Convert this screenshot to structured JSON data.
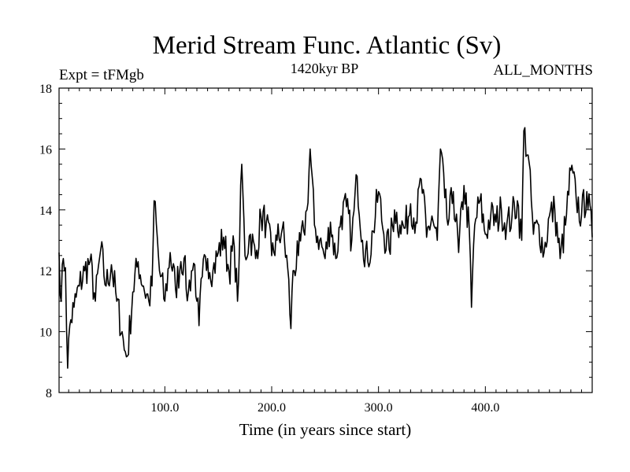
{
  "chart_data": {
    "type": "line",
    "title": "Merid Stream Func. Atlantic (Sv)",
    "subtitle": "1420kyr BP",
    "left_label": "Expt = tFMgb",
    "right_label": "ALL_MONTHS",
    "xlabel": "Time (in years since start)",
    "ylabel": "",
    "xlim": [
      1,
      500
    ],
    "ylim": [
      8,
      18
    ],
    "x_ticks": [
      100,
      200,
      300,
      400
    ],
    "x_tick_labels": [
      "100.0",
      "200.0",
      "300.0",
      "400.0"
    ],
    "y_ticks": [
      8,
      10,
      12,
      14,
      16,
      18
    ],
    "y_tick_labels": [
      "8",
      "10",
      "12",
      "14",
      "16",
      "18"
    ],
    "grid": false,
    "series": [
      {
        "name": "Merid Stream Func.",
        "color": "#000000",
        "key_points": [
          [
            1,
            12.6
          ],
          [
            3,
            11.0
          ],
          [
            5,
            12.4
          ],
          [
            7,
            12.1
          ],
          [
            9,
            8.8
          ],
          [
            11,
            10.2
          ],
          [
            15,
            10.8
          ],
          [
            20,
            11.5
          ],
          [
            25,
            12.0
          ],
          [
            30,
            12.3
          ],
          [
            35,
            11.0
          ],
          [
            40,
            12.7
          ],
          [
            45,
            11.5
          ],
          [
            50,
            12.2
          ],
          [
            55,
            11.0
          ],
          [
            60,
            10.0
          ],
          [
            62,
            9.4
          ],
          [
            65,
            9.2
          ],
          [
            70,
            11.3
          ],
          [
            75,
            12.3
          ],
          [
            80,
            11.5
          ],
          [
            85,
            11.0
          ],
          [
            88,
            11.5
          ],
          [
            90,
            14.3
          ],
          [
            95,
            12.0
          ],
          [
            100,
            11.0
          ],
          [
            105,
            12.6
          ],
          [
            110,
            11.4
          ],
          [
            115,
            12.3
          ],
          [
            118,
            12.4
          ],
          [
            120,
            11.4
          ],
          [
            122,
            11.3
          ],
          [
            125,
            12.0
          ],
          [
            128,
            12.2
          ],
          [
            130,
            11.0
          ],
          [
            132,
            10.2
          ],
          [
            135,
            11.8
          ],
          [
            140,
            12.4
          ],
          [
            145,
            12.0
          ],
          [
            150,
            12.6
          ],
          [
            155,
            13.1
          ],
          [
            160,
            12.0
          ],
          [
            165,
            12.8
          ],
          [
            168,
            11.0
          ],
          [
            170,
            13.0
          ],
          [
            172,
            15.5
          ],
          [
            175,
            12.5
          ],
          [
            180,
            13.2
          ],
          [
            185,
            12.4
          ],
          [
            190,
            13.8
          ],
          [
            195,
            13.6
          ],
          [
            200,
            12.5
          ],
          [
            205,
            13.0
          ],
          [
            210,
            13.4
          ],
          [
            215,
            12.1
          ],
          [
            218,
            10.1
          ],
          [
            220,
            12.0
          ],
          [
            225,
            12.5
          ],
          [
            230,
            13.3
          ],
          [
            233,
            14.0
          ],
          [
            236,
            16.0
          ],
          [
            240,
            13.5
          ],
          [
            245,
            13.0
          ],
          [
            250,
            12.4
          ],
          [
            255,
            13.6
          ],
          [
            260,
            12.4
          ],
          [
            265,
            13.8
          ],
          [
            270,
            14.1
          ],
          [
            275,
            13.0
          ],
          [
            280,
            15.1
          ],
          [
            285,
            13.0
          ],
          [
            290,
            12.3
          ],
          [
            295,
            13.3
          ],
          [
            300,
            14.6
          ],
          [
            305,
            13.2
          ],
          [
            310,
            12.7
          ],
          [
            315,
            14.0
          ],
          [
            320,
            13.5
          ],
          [
            325,
            13.4
          ],
          [
            330,
            14.2
          ],
          [
            335,
            13.6
          ],
          [
            340,
            15.0
          ],
          [
            345,
            13.1
          ],
          [
            350,
            13.8
          ],
          [
            355,
            13.0
          ],
          [
            358,
            16.0
          ],
          [
            362,
            14.4
          ],
          [
            365,
            13.5
          ],
          [
            370,
            14.6
          ],
          [
            375,
            12.6
          ],
          [
            380,
            14.8
          ],
          [
            385,
            13.3
          ],
          [
            387,
            10.8
          ],
          [
            390,
            13.5
          ],
          [
            395,
            14.3
          ],
          [
            400,
            13.2
          ],
          [
            405,
            13.8
          ],
          [
            410,
            13.6
          ],
          [
            415,
            14.0
          ],
          [
            420,
            13.5
          ],
          [
            425,
            13.8
          ],
          [
            430,
            14.3
          ],
          [
            434,
            13.0
          ],
          [
            436,
            16.6
          ],
          [
            440,
            15.8
          ],
          [
            445,
            13.2
          ],
          [
            450,
            13.5
          ],
          [
            455,
            12.6
          ],
          [
            460,
            13.8
          ],
          [
            465,
            14.0
          ],
          [
            470,
            12.4
          ],
          [
            475,
            13.5
          ],
          [
            480,
            15.3
          ],
          [
            485,
            14.4
          ],
          [
            490,
            13.8
          ],
          [
            495,
            14.6
          ],
          [
            500,
            13.1
          ]
        ]
      }
    ]
  }
}
